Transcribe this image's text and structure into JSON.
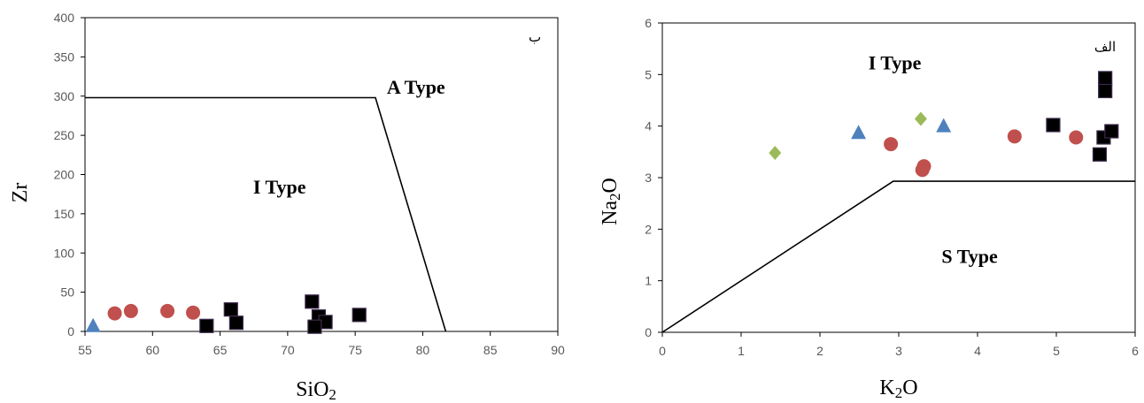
{
  "chart_data": [
    {
      "type": "scatter",
      "xlabel": "SiO2",
      "ylabel": "Zr",
      "xlim": [
        55,
        90
      ],
      "ylim": [
        0,
        400
      ],
      "xticks": [
        "55",
        "60",
        "65",
        "70",
        "75",
        "80",
        "85",
        "90"
      ],
      "yticks": [
        "0",
        "50",
        "100",
        "150",
        "200",
        "250",
        "300",
        "350",
        "400"
      ],
      "corner_label": "ب",
      "region_labels": [
        {
          "text": "A Type",
          "x": 79.5,
          "y": 303
        },
        {
          "text": "I Type",
          "x": 69.4,
          "y": 176
        }
      ],
      "boundary": [
        [
          55,
          298
        ],
        [
          76.5,
          298
        ],
        [
          81.7,
          0
        ]
      ],
      "colors": {
        "circle": "#C0504D",
        "square": "#000000",
        "triangle": "#4F81BD",
        "diamond": "#9BBB59"
      },
      "series": [
        {
          "marker": "triangle",
          "points": [
            [
              55.6,
              7
            ]
          ]
        },
        {
          "marker": "circle",
          "points": [
            [
              57.2,
              23
            ],
            [
              58.4,
              26
            ],
            [
              61.1,
              26
            ],
            [
              63.0,
              24
            ]
          ]
        },
        {
          "marker": "square",
          "points": [
            [
              64.0,
              7
            ],
            [
              65.8,
              28
            ],
            [
              66.2,
              11
            ],
            [
              71.8,
              38
            ],
            [
              72.3,
              19
            ],
            [
              72.8,
              12
            ],
            [
              72.0,
              6
            ],
            [
              75.3,
              21
            ]
          ]
        }
      ]
    },
    {
      "type": "scatter",
      "xlabel": "K2O",
      "ylabel": "Na2O",
      "xlim": [
        0,
        6
      ],
      "ylim": [
        0,
        6
      ],
      "xticks": [
        "0",
        "1",
        "2",
        "3",
        "4",
        "5",
        "6"
      ],
      "yticks": [
        "0",
        "1",
        "2",
        "3",
        "4",
        "5",
        "6"
      ],
      "corner_label": "الف",
      "region_labels": [
        {
          "text": "I Type",
          "x": 2.95,
          "y": 5.1
        },
        {
          "text": "S Type",
          "x": 3.9,
          "y": 1.35
        }
      ],
      "boundary": [
        [
          0,
          0
        ],
        [
          2.93,
          2.93
        ],
        [
          6,
          2.93
        ]
      ],
      "colors": {
        "circle": "#C0504D",
        "square": "#000000",
        "triangle": "#4F81BD",
        "diamond": "#9BBB59"
      },
      "series": [
        {
          "marker": "diamond",
          "points": [
            [
              1.43,
              3.48
            ],
            [
              3.28,
              4.14
            ]
          ]
        },
        {
          "marker": "triangle",
          "points": [
            [
              2.49,
              3.87
            ],
            [
              3.57,
              4.0
            ]
          ]
        },
        {
          "marker": "circle",
          "points": [
            [
              2.9,
              3.65
            ],
            [
              3.3,
              3.15
            ],
            [
              3.32,
              3.22
            ],
            [
              4.47,
              3.8
            ],
            [
              5.25,
              3.78
            ]
          ]
        },
        {
          "marker": "square",
          "points": [
            [
              4.96,
              4.02
            ],
            [
              5.62,
              4.93
            ],
            [
              5.62,
              4.68
            ],
            [
              5.6,
              3.78
            ],
            [
              5.55,
              3.45
            ],
            [
              5.7,
              3.9
            ]
          ]
        }
      ]
    }
  ]
}
